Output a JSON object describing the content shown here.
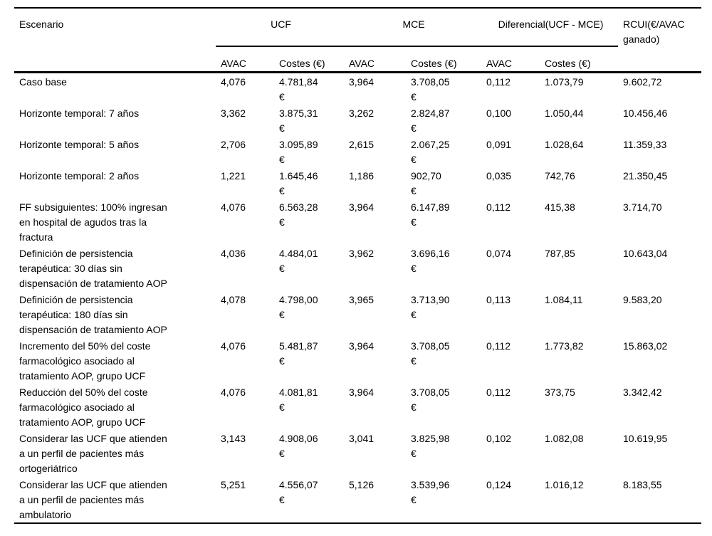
{
  "table": {
    "headers": {
      "escenario": "Escenario",
      "ucf": "UCF",
      "mce": "MCE",
      "diferencial": "Diferencial(UCF - MCE)",
      "rcui": "RCUI(€/AVAC\nganado)",
      "avac": "AVAC",
      "costes": "Costes (€)"
    },
    "rows": [
      {
        "escenario": "Caso base",
        "ucf_avac": "4,076",
        "ucf_costes": "4.781,84\n€",
        "mce_avac": "3,964",
        "mce_costes": "3.708,05\n€",
        "dif_avac": "0,112",
        "dif_costes": "1.073,79",
        "rcui": "9.602,72"
      },
      {
        "escenario": "Horizonte temporal: 7 años",
        "ucf_avac": "3,362",
        "ucf_costes": "3.875,31\n€",
        "mce_avac": "3,262",
        "mce_costes": "2.824,87\n€",
        "dif_avac": "0,100",
        "dif_costes": "1.050,44",
        "rcui": "10.456,46"
      },
      {
        "escenario": "Horizonte temporal: 5 años",
        "ucf_avac": "2,706",
        "ucf_costes": "3.095,89\n€",
        "mce_avac": "2,615",
        "mce_costes": "2.067,25\n€",
        "dif_avac": "0,091",
        "dif_costes": "1.028,64",
        "rcui": "11.359,33"
      },
      {
        "escenario": "Horizonte temporal: 2 años",
        "ucf_avac": "1,221",
        "ucf_costes": "1.645,46\n€",
        "mce_avac": "1,186",
        "mce_costes": "902,70\n€",
        "dif_avac": "0,035",
        "dif_costes": "742,76",
        "rcui": "21.350,45"
      },
      {
        "escenario": "FF subsiguientes: 100% ingresan\nen hospital de agudos tras la\nfractura",
        "ucf_avac": "4,076",
        "ucf_costes": "6.563,28\n€",
        "mce_avac": "3,964",
        "mce_costes": "6.147,89\n€",
        "dif_avac": "0,112",
        "dif_costes": "415,38",
        "rcui": "3.714,70"
      },
      {
        "escenario": "Definición de persistencia\nterapéutica: 30 días sin\ndispensación de tratamiento AOP",
        "ucf_avac": "4,036",
        "ucf_costes": "4.484,01\n€",
        "mce_avac": "3,962",
        "mce_costes": "3.696,16\n€",
        "dif_avac": "0,074",
        "dif_costes": "787,85",
        "rcui": "10.643,04"
      },
      {
        "escenario": "Definición de persistencia\nterapéutica: 180 días sin\ndispensación de tratamiento AOP",
        "ucf_avac": "4,078",
        "ucf_costes": "4.798,00\n€",
        "mce_avac": "3,965",
        "mce_costes": "3.713,90\n€",
        "dif_avac": "0,113",
        "dif_costes": "1.084,11",
        "rcui": "9.583,20"
      },
      {
        "escenario": "Incremento del 50% del coste\nfarmacológico asociado al\ntratamiento AOP, grupo UCF",
        "ucf_avac": "4,076",
        "ucf_costes": "5.481,87\n€",
        "mce_avac": "3,964",
        "mce_costes": "3.708,05\n€",
        "dif_avac": "0,112",
        "dif_costes": "1.773,82",
        "rcui": "15.863,02"
      },
      {
        "escenario": "Reducción del 50% del coste\nfarmacológico asociado al\ntratamiento AOP, grupo UCF",
        "ucf_avac": "4,076",
        "ucf_costes": "4.081,81\n€",
        "mce_avac": "3,964",
        "mce_costes": "3.708,05\n€",
        "dif_avac": "0,112",
        "dif_costes": "373,75",
        "rcui": "3.342,42"
      },
      {
        "escenario": "Considerar las UCF que atienden\na un perfil de pacientes más\nortogeriátrico",
        "ucf_avac": "3,143",
        "ucf_costes": "4.908,06\n€",
        "mce_avac": "3,041",
        "mce_costes": "3.825,98\n€",
        "dif_avac": "0,102",
        "dif_costes": "1.082,08",
        "rcui": "10.619,95"
      },
      {
        "escenario": "Considerar las UCF que atienden\na un perfil de pacientes más\nambulatorio",
        "ucf_avac": "5,251",
        "ucf_costes": "4.556,07\n€",
        "mce_avac": "5,126",
        "mce_costes": "3.539,96\n€",
        "dif_avac": "0,124",
        "dif_costes": "1.016,12",
        "rcui": "8.183,55"
      }
    ]
  }
}
